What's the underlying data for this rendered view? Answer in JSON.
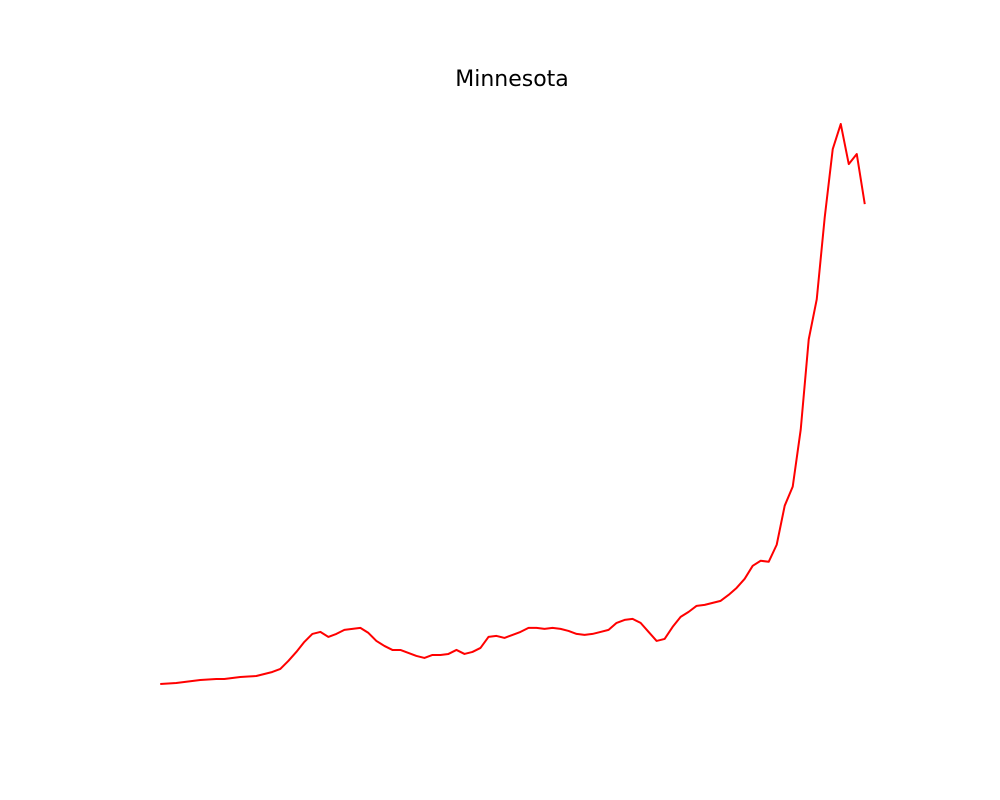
{
  "chart_data": {
    "type": "line",
    "title": "Minnesota",
    "color": "#ff0000",
    "values": [
      0,
      0.5,
      1,
      2,
      3,
      4,
      4.5,
      5,
      5,
      6,
      7,
      7.5,
      8,
      10,
      12,
      15,
      23,
      32,
      42,
      50,
      52,
      47,
      50,
      54,
      55,
      56,
      51,
      43,
      38,
      34,
      34,
      31,
      28,
      26,
      29,
      29,
      30,
      34,
      30,
      32,
      36,
      47,
      48,
      46,
      49,
      52,
      56,
      56,
      55,
      56,
      55,
      53,
      50,
      49,
      50,
      52,
      54,
      61,
      64,
      65,
      61,
      52,
      43,
      45,
      57,
      67,
      72,
      78,
      79,
      81,
      83,
      89,
      96,
      105,
      118,
      123,
      122,
      139,
      178,
      197,
      254,
      344,
      384,
      466,
      534,
      559,
      519,
      529,
      479
    ]
  }
}
